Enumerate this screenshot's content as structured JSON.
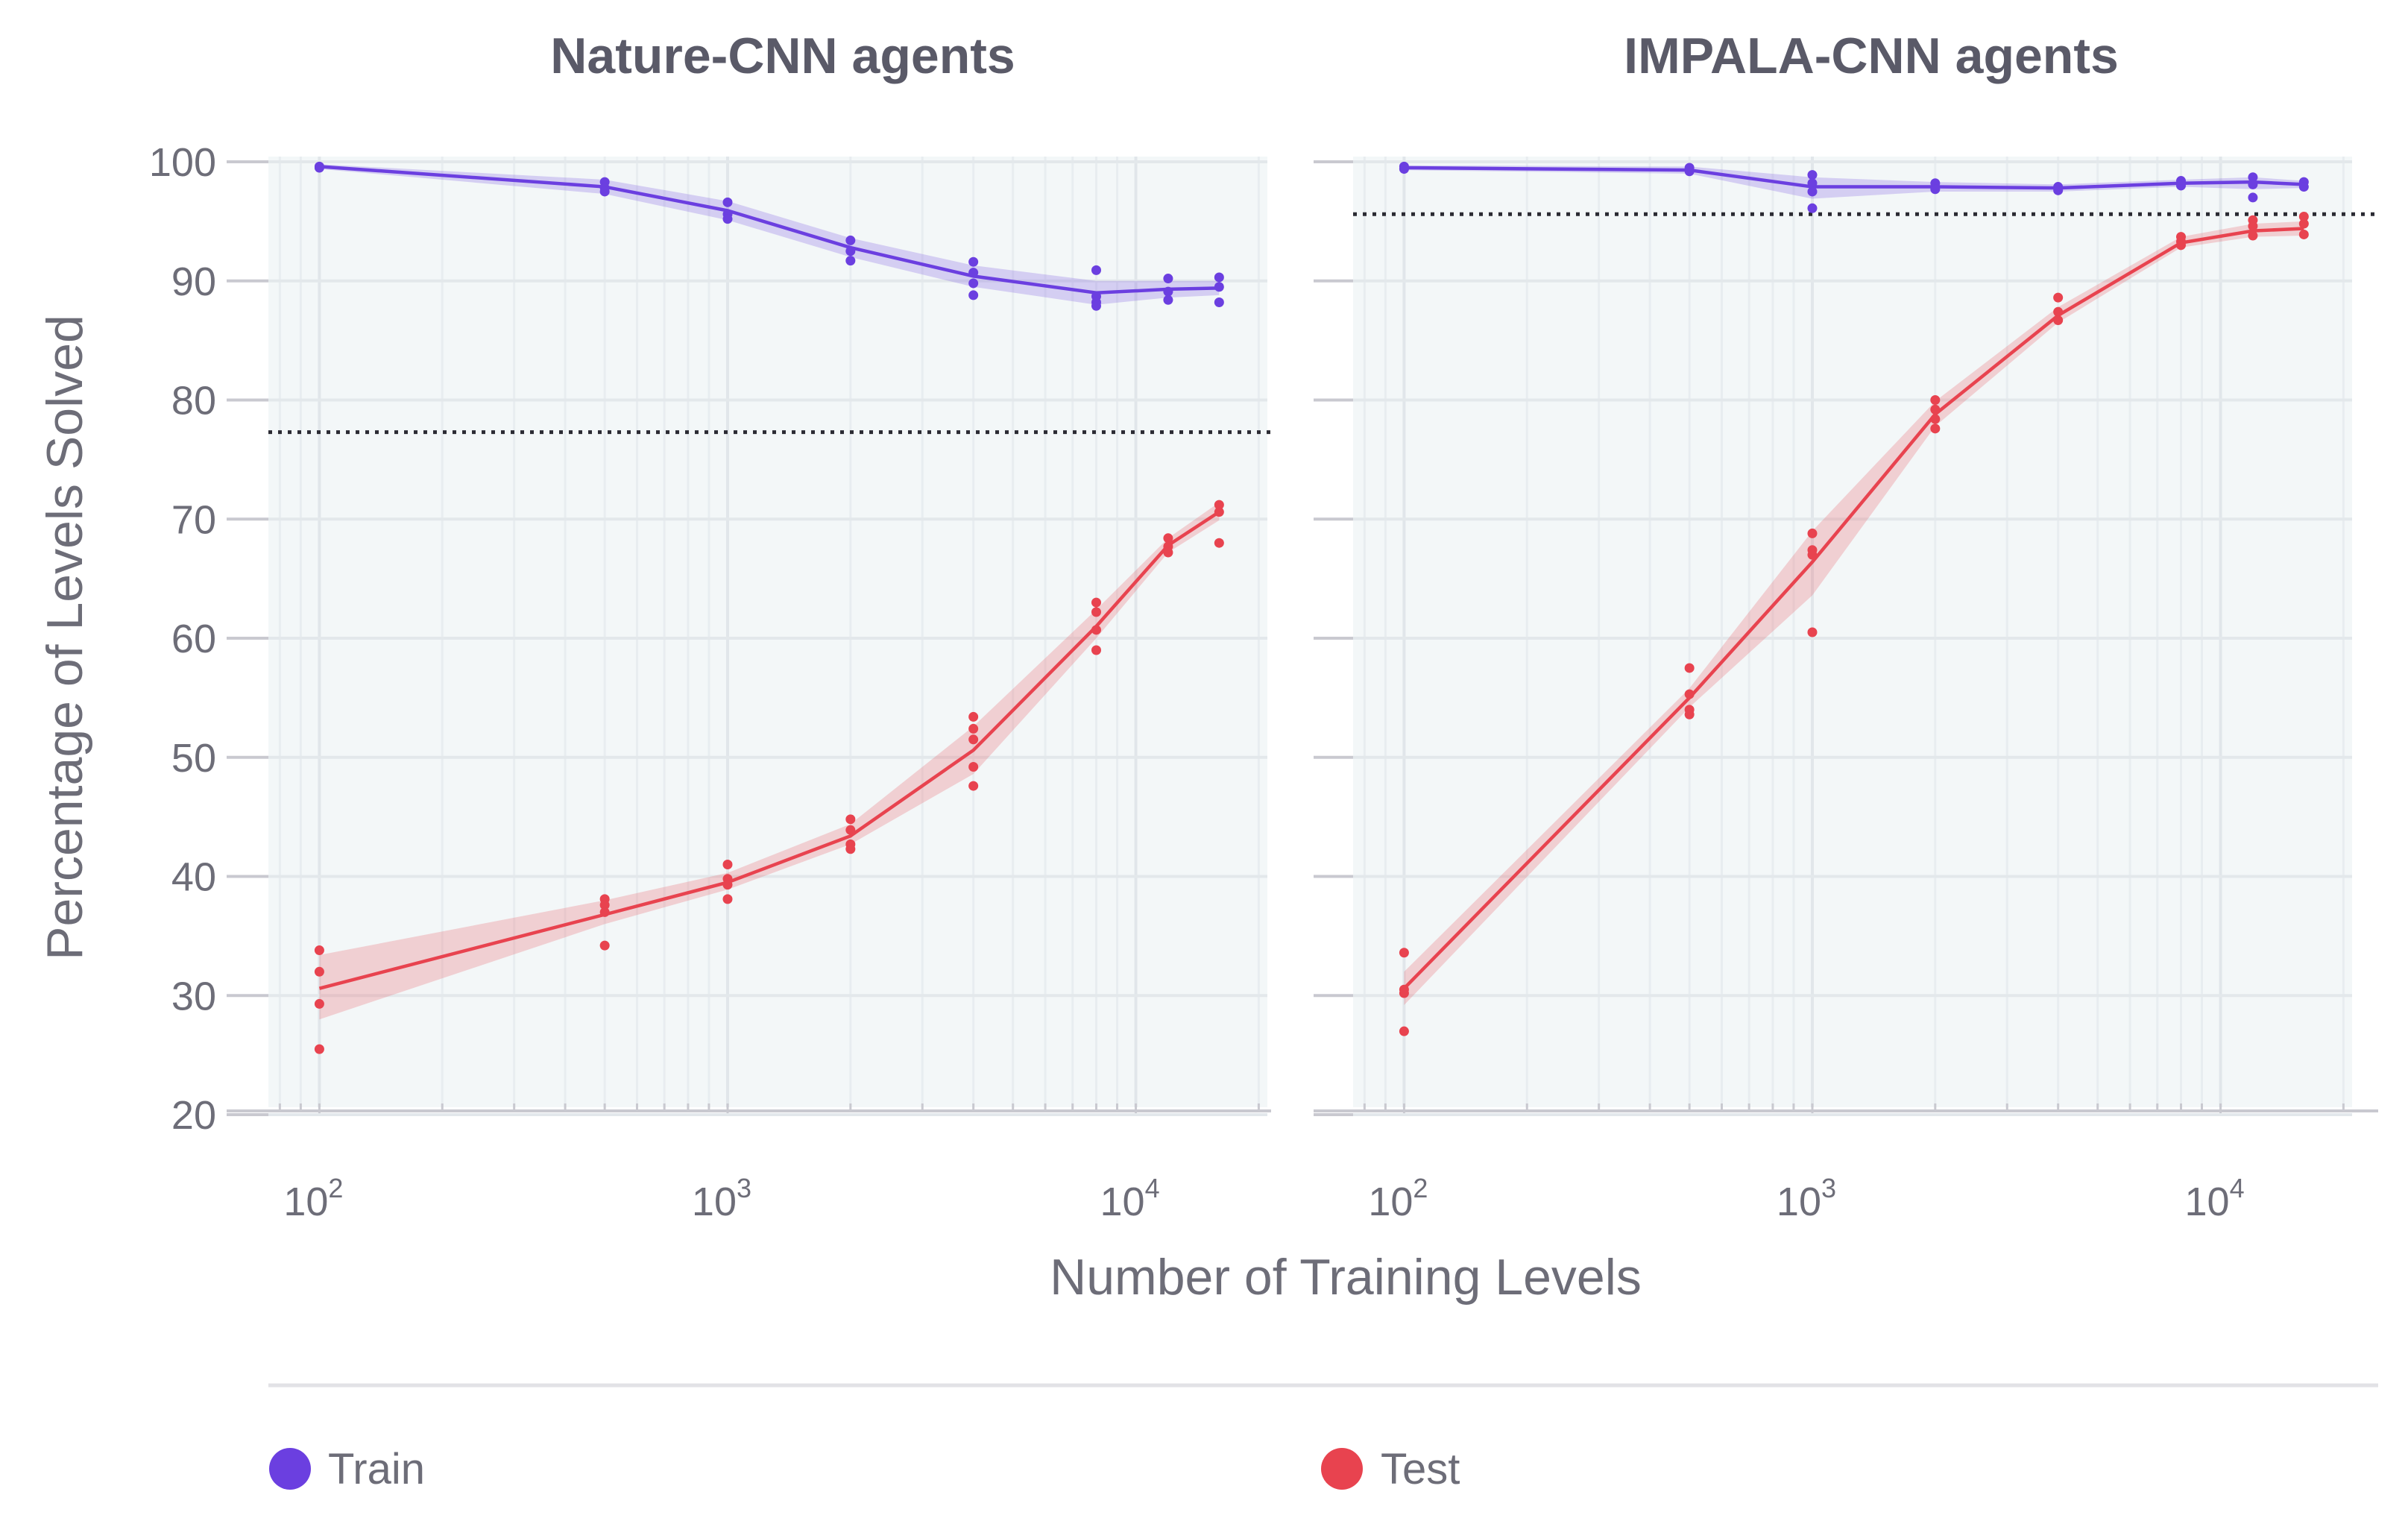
{
  "chart_data": [
    {
      "type": "line",
      "panel": "left",
      "title": "Nature-CNN agents",
      "xscale": "log",
      "xlim": [
        75,
        21000
      ],
      "ylim": [
        20,
        102
      ],
      "ylabel": "Percentage of Levels Solved",
      "xlabel": "Number of Training Levels",
      "yticks": [
        20,
        30,
        40,
        50,
        60,
        70,
        80,
        90,
        100
      ],
      "xticks": [
        {
          "value": 100,
          "label": "10",
          "exp": "2"
        },
        {
          "value": 1000,
          "label": "10",
          "exp": "3"
        },
        {
          "value": 10000,
          "label": "10",
          "exp": "4"
        }
      ],
      "reference_line": 77.3,
      "x": [
        100,
        500,
        1000,
        2000,
        4000,
        8000,
        12000,
        16000
      ],
      "series": [
        {
          "name": "Train",
          "color": "#6b3fe0",
          "values": [
            99.6,
            97.9,
            95.9,
            92.8,
            90.4,
            89.0,
            89.3,
            89.4
          ],
          "band_low": [
            99.4,
            97.3,
            95.1,
            92.0,
            89.5,
            88.0,
            88.6,
            88.8
          ],
          "band_high": [
            99.8,
            98.5,
            96.7,
            93.6,
            91.3,
            90.0,
            90.0,
            90.0
          ],
          "points": [
            [
              100,
              99.6
            ],
            [
              100,
              99.5
            ],
            [
              500,
              98.3
            ],
            [
              500,
              97.8
            ],
            [
              500,
              97.5
            ],
            [
              1000,
              96.6
            ],
            [
              1000,
              95.6
            ],
            [
              1000,
              95.2
            ],
            [
              2000,
              93.4
            ],
            [
              2000,
              92.5
            ],
            [
              2000,
              91.7
            ],
            [
              4000,
              91.6
            ],
            [
              4000,
              90.7
            ],
            [
              4000,
              89.8
            ],
            [
              4000,
              88.8
            ],
            [
              8000,
              90.9
            ],
            [
              8000,
              88.7
            ],
            [
              8000,
              88.2
            ],
            [
              8000,
              87.9
            ],
            [
              12000,
              90.2
            ],
            [
              12000,
              89.1
            ],
            [
              12000,
              88.4
            ],
            [
              16000,
              90.3
            ],
            [
              16000,
              89.5
            ],
            [
              16000,
              88.2
            ]
          ]
        },
        {
          "name": "Test",
          "color": "#e8434f",
          "values": [
            30.6,
            36.8,
            39.5,
            43.4,
            50.6,
            61.0,
            67.8,
            70.6
          ],
          "band_low": [
            28.0,
            36.0,
            38.9,
            42.7,
            48.6,
            60.0,
            67.2,
            69.9
          ],
          "band_high": [
            33.4,
            38.0,
            40.3,
            44.4,
            52.6,
            62.4,
            68.4,
            71.4
          ],
          "points": [
            [
              100,
              33.8
            ],
            [
              100,
              32.0
            ],
            [
              100,
              29.3
            ],
            [
              100,
              25.5
            ],
            [
              500,
              38.1
            ],
            [
              500,
              37.6
            ],
            [
              500,
              37.0
            ],
            [
              500,
              34.2
            ],
            [
              1000,
              41.0
            ],
            [
              1000,
              39.8
            ],
            [
              1000,
              39.3
            ],
            [
              1000,
              38.1
            ],
            [
              2000,
              44.8
            ],
            [
              2000,
              43.9
            ],
            [
              2000,
              42.7
            ],
            [
              2000,
              42.3
            ],
            [
              4000,
              53.4
            ],
            [
              4000,
              52.4
            ],
            [
              4000,
              51.5
            ],
            [
              4000,
              49.2
            ],
            [
              4000,
              47.6
            ],
            [
              8000,
              63.0
            ],
            [
              8000,
              62.2
            ],
            [
              8000,
              60.7
            ],
            [
              8000,
              59.0
            ],
            [
              12000,
              68.4
            ],
            [
              12000,
              67.7
            ],
            [
              12000,
              67.2
            ],
            [
              16000,
              71.2
            ],
            [
              16000,
              70.6
            ],
            [
              16000,
              68.0
            ]
          ]
        }
      ]
    },
    {
      "type": "line",
      "panel": "right",
      "title": "IMPALA-CNN agents",
      "xscale": "log",
      "xlim": [
        75,
        21000
      ],
      "ylim": [
        20,
        102
      ],
      "ylabel": "Percentage of Levels Solved",
      "xlabel": "Number of Training Levels",
      "yticks": [
        20,
        30,
        40,
        50,
        60,
        70,
        80,
        90,
        100
      ],
      "xticks": [
        {
          "value": 100,
          "label": "10",
          "exp": "2"
        },
        {
          "value": 1000,
          "label": "10",
          "exp": "3"
        },
        {
          "value": 10000,
          "label": "10",
          "exp": "4"
        }
      ],
      "reference_line": 95.6,
      "x": [
        100,
        500,
        1000,
        2000,
        4000,
        8000,
        12000,
        16000
      ],
      "series": [
        {
          "name": "Train",
          "color": "#6b3fe0",
          "values": [
            99.5,
            99.3,
            97.9,
            97.9,
            97.8,
            98.2,
            98.3,
            98.1
          ],
          "band_low": [
            99.3,
            99.0,
            96.9,
            97.5,
            97.5,
            97.9,
            97.7,
            97.8
          ],
          "band_high": [
            99.7,
            99.6,
            98.7,
            98.3,
            98.1,
            98.5,
            98.7,
            98.4
          ],
          "points": [
            [
              100,
              99.6
            ],
            [
              100,
              99.4
            ],
            [
              500,
              99.5
            ],
            [
              500,
              99.2
            ],
            [
              1000,
              98.9
            ],
            [
              1000,
              98.2
            ],
            [
              1000,
              97.5
            ],
            [
              1000,
              96.1
            ],
            [
              2000,
              98.2
            ],
            [
              2000,
              97.7
            ],
            [
              4000,
              97.9
            ],
            [
              4000,
              97.6
            ],
            [
              8000,
              98.4
            ],
            [
              8000,
              98.0
            ],
            [
              12000,
              98.7
            ],
            [
              12000,
              98.1
            ],
            [
              12000,
              97.0
            ],
            [
              16000,
              98.3
            ],
            [
              16000,
              97.9
            ]
          ]
        },
        {
          "name": "Test",
          "color": "#e8434f",
          "values": [
            30.6,
            55.0,
            66.4,
            78.8,
            87.1,
            93.2,
            94.2,
            94.4
          ],
          "band_low": [
            29.2,
            54.2,
            63.6,
            77.8,
            86.5,
            92.8,
            93.7,
            93.8
          ],
          "band_high": [
            32.0,
            55.8,
            69.0,
            79.9,
            87.8,
            93.7,
            94.8,
            95.0
          ],
          "points": [
            [
              100,
              33.6
            ],
            [
              100,
              30.5
            ],
            [
              100,
              30.2
            ],
            [
              100,
              27.0
            ],
            [
              500,
              57.5
            ],
            [
              500,
              55.3
            ],
            [
              500,
              54.0
            ],
            [
              500,
              53.6
            ],
            [
              1000,
              68.8
            ],
            [
              1000,
              67.4
            ],
            [
              1000,
              67.0
            ],
            [
              1000,
              60.5
            ],
            [
              2000,
              80.0
            ],
            [
              2000,
              79.2
            ],
            [
              2000,
              78.4
            ],
            [
              2000,
              77.6
            ],
            [
              4000,
              88.6
            ],
            [
              4000,
              87.4
            ],
            [
              4000,
              86.7
            ],
            [
              8000,
              93.7
            ],
            [
              8000,
              93.3
            ],
            [
              8000,
              93.0
            ],
            [
              12000,
              95.1
            ],
            [
              12000,
              94.6
            ],
            [
              12000,
              93.8
            ],
            [
              16000,
              95.4
            ],
            [
              16000,
              94.8
            ],
            [
              16000,
              93.9
            ]
          ]
        }
      ]
    }
  ],
  "legend": [
    {
      "label": "Train",
      "color": "#6b3fe0"
    },
    {
      "label": "Test",
      "color": "#e8434f"
    }
  ],
  "ylabel": "Percentage of Levels Solved",
  "xlabel": "Number of Training Levels"
}
